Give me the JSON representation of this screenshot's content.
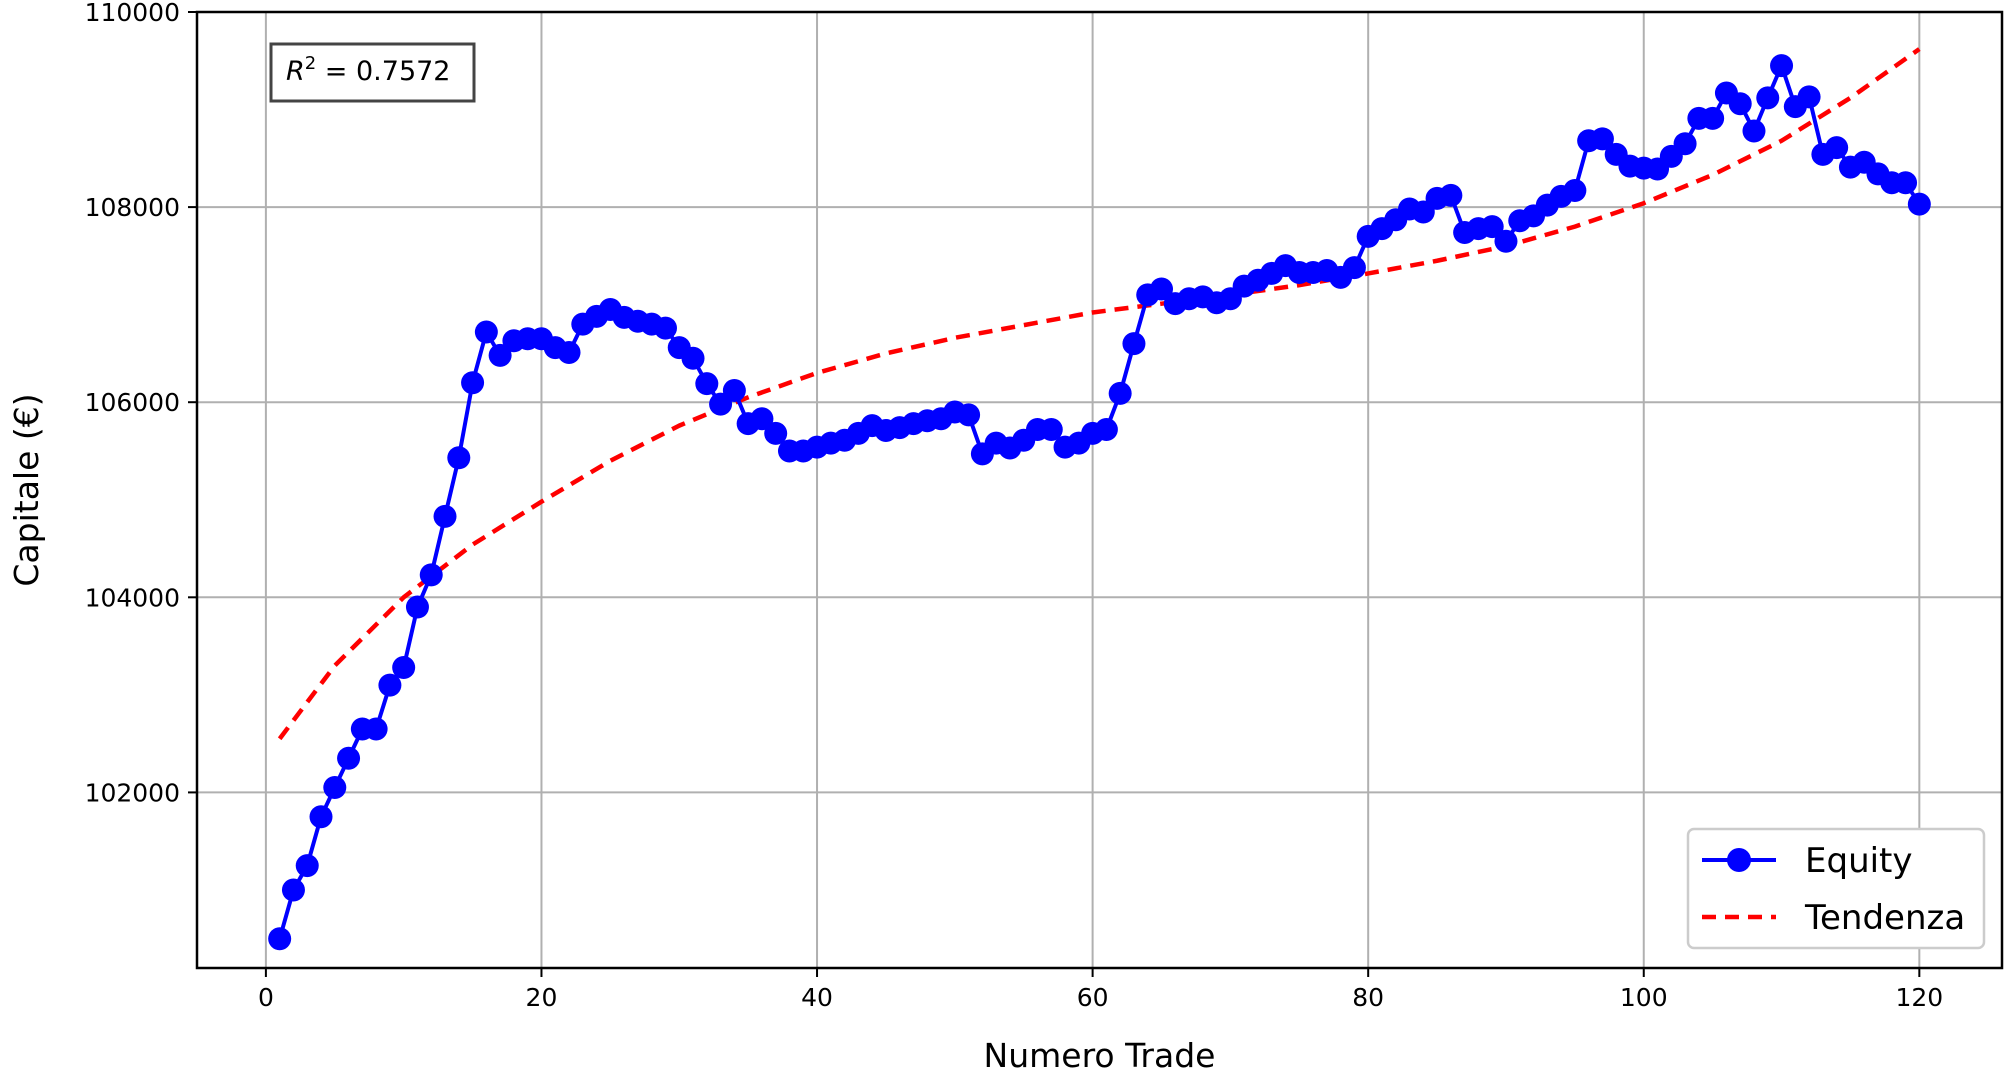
{
  "chart_data": {
    "type": "line",
    "xlabel": "Numero Trade",
    "ylabel": "Capitale (€)",
    "xlim": [
      -5,
      126
    ],
    "ylim": [
      100200,
      110000
    ],
    "xticks": [
      0,
      20,
      40,
      60,
      80,
      100,
      120
    ],
    "yticks": [
      102000,
      104000,
      106000,
      108000,
      110000
    ],
    "grid": true,
    "legend_position": "lower-right",
    "annotation": {
      "prefix": "R",
      "exponent": "2",
      "text": " = 0.7572"
    },
    "series": [
      {
        "name": "Equity",
        "color": "#0000ff",
        "style": "solid-with-circle-markers",
        "x": [
          1,
          2,
          3,
          4,
          5,
          6,
          7,
          8,
          9,
          10,
          11,
          12,
          13,
          14,
          15,
          16,
          17,
          18,
          19,
          20,
          21,
          22,
          23,
          24,
          25,
          26,
          27,
          28,
          29,
          30,
          31,
          32,
          33,
          34,
          35,
          36,
          37,
          38,
          39,
          40,
          41,
          42,
          43,
          44,
          45,
          46,
          47,
          48,
          49,
          50,
          51,
          52,
          53,
          54,
          55,
          56,
          57,
          58,
          59,
          60,
          61,
          62,
          63,
          64,
          65,
          66,
          67,
          68,
          69,
          70,
          71,
          72,
          73,
          74,
          75,
          76,
          77,
          78,
          79,
          80,
          81,
          82,
          83,
          84,
          85,
          86,
          87,
          88,
          89,
          90,
          91,
          92,
          93,
          94,
          95,
          96,
          97,
          98,
          99,
          100,
          101,
          102,
          103,
          104,
          105,
          106,
          107,
          108,
          109,
          110,
          111,
          112,
          113,
          114,
          115,
          116,
          117,
          118,
          119,
          120
        ],
        "values": [
          100500,
          101000,
          101250,
          101750,
          102050,
          102350,
          102650,
          102650,
          103100,
          103280,
          103900,
          104230,
          104830,
          105430,
          106200,
          106720,
          106480,
          106630,
          106650,
          106650,
          106560,
          106510,
          106800,
          106880,
          106950,
          106870,
          106830,
          106800,
          106760,
          106560,
          106450,
          106190,
          105980,
          106120,
          105780,
          105830,
          105680,
          105500,
          105500,
          105540,
          105580,
          105610,
          105680,
          105760,
          105710,
          105740,
          105780,
          105810,
          105830,
          105900,
          105870,
          105470,
          105580,
          105530,
          105610,
          105720,
          105720,
          105540,
          105580,
          105680,
          105720,
          106090,
          106600,
          107100,
          107160,
          107010,
          107060,
          107080,
          107020,
          107060,
          107190,
          107250,
          107320,
          107400,
          107330,
          107330,
          107350,
          107280,
          107380,
          107700,
          107780,
          107870,
          107980,
          107950,
          108090,
          108120,
          107740,
          107780,
          107800,
          107650,
          107860,
          107910,
          108020,
          108110,
          108170,
          108680,
          108700,
          108540,
          108420,
          108400,
          108390,
          108520,
          108650,
          108910,
          108910,
          109170,
          109060,
          108780,
          109120,
          109450,
          109030,
          109130,
          108540,
          108610,
          108410,
          108460,
          108340,
          108250,
          108250,
          108030
        ]
      },
      {
        "name": "Tendenza",
        "color": "#ff0000",
        "style": "dashed",
        "x": [
          1,
          5,
          10,
          15,
          20,
          25,
          30,
          35,
          40,
          45,
          50,
          55,
          60,
          65,
          70,
          75,
          80,
          85,
          90,
          95,
          100,
          105,
          110,
          115,
          120
        ],
        "values": [
          102550,
          103300,
          104000,
          104540,
          104980,
          105400,
          105760,
          106050,
          106300,
          106500,
          106660,
          106790,
          106920,
          107010,
          107100,
          107200,
          107320,
          107450,
          107600,
          107800,
          108040,
          108330,
          108680,
          109120,
          109620
        ]
      }
    ]
  }
}
